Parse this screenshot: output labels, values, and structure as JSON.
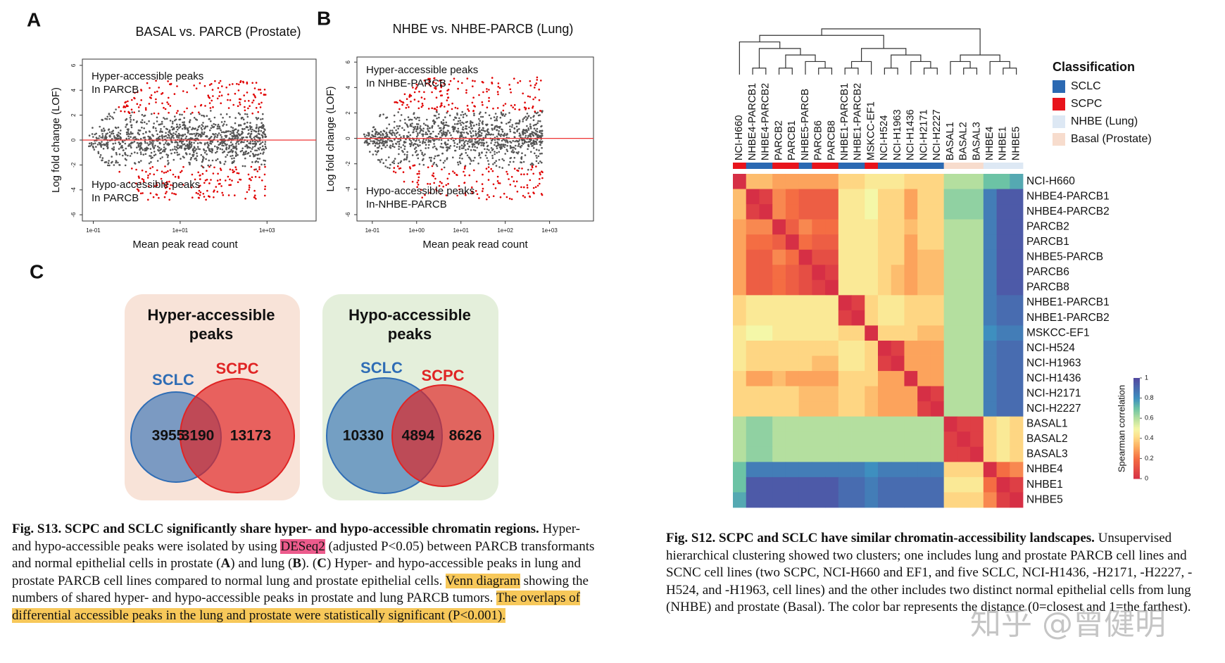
{
  "panel_a": {
    "letter": "A",
    "title": "BASAL vs. PARCB (Prostate)",
    "ylabel": "Log fold change (LOF)",
    "xlabel": "Mean peak read count",
    "annotations": [
      [
        "Hyper-accessible peaks",
        "In PARCB"
      ],
      [
        "Hypo-accessible peaks",
        "In PARCB"
      ]
    ],
    "log_x": true,
    "xlim": [
      0.056,
      13500
    ],
    "ylim": [
      -6.5,
      6.5
    ],
    "xticks": [
      {
        "value": 0.1,
        "label": "1e-01"
      },
      {
        "value": 10,
        "label": "1e+01"
      },
      {
        "value": 1000,
        "label": "1e+03"
      }
    ],
    "yticks": [
      -6,
      -4,
      -2,
      0,
      2,
      4,
      6
    ],
    "colors": {
      "significant": "#e00000",
      "other": "#555555"
    }
  },
  "panel_b": {
    "letter": "B",
    "title": "NHBE vs. NHBE-PARCB (Lung)",
    "ylabel": "Log fold change (LOF)",
    "xlabel": "Mean peak read count",
    "annotations": [
      [
        "Hyper-accessible peaks",
        "In NHBE-PARCB"
      ],
      [
        "Hypo-accessible peaks",
        "In-NHBE-PARCB"
      ]
    ],
    "log_x": true,
    "xlim": [
      0.045,
      9800
    ],
    "ylim": [
      -6.5,
      6.4
    ],
    "xticks": [
      {
        "value": 0.1,
        "label": "1e-01"
      },
      {
        "value": 1,
        "label": "1e+00"
      },
      {
        "value": 10,
        "label": "1e+01"
      },
      {
        "value": 100,
        "label": "1e+02"
      },
      {
        "value": 1000,
        "label": "1e+03"
      }
    ],
    "yticks": [
      -6,
      -4,
      -2,
      0,
      2,
      4,
      6
    ],
    "colors": {
      "significant": "#e00000",
      "other": "#555555"
    }
  },
  "panel_c": {
    "letter": "C",
    "venns": [
      {
        "title": [
          "Hyper-accessible",
          "peaks"
        ],
        "background": "#f8e3d8",
        "sets": [
          {
            "name": "SCLC",
            "color": "#2f6db5"
          },
          {
            "name": "SCPC",
            "color": "#e02424"
          }
        ],
        "values": [
          3955,
          3190,
          13173
        ]
      },
      {
        "title": [
          "Hypo-accessible",
          "peaks"
        ],
        "background": "#e4efdb",
        "sets": [
          {
            "name": "SCLC",
            "color": "#2f6db5"
          },
          {
            "name": "SCPC",
            "color": "#e02424"
          }
        ],
        "values": [
          10330,
          4894,
          8626
        ]
      }
    ]
  },
  "caption_left": [
    {
      "text": "Fig. S13. SCPC and SCLC significantly share hyper- and hypo-accessible chromatin regions.",
      "style": "bold"
    },
    {
      "text": "  Hyper- and hypo-accessible peaks were isolated by using ",
      "style": "plain"
    },
    {
      "text": "DESeq2",
      "style": "highlight-pink"
    },
    {
      "text": " (adjusted P<0.05) between PARCB transformants and normal epithelial cells in prostate (",
      "style": "plain"
    },
    {
      "text": "A",
      "style": "bold"
    },
    {
      "text": ") and lung (",
      "style": "plain"
    },
    {
      "text": "B",
      "style": "bold"
    },
    {
      "text": ").  (",
      "style": "plain"
    },
    {
      "text": "C",
      "style": "bold"
    },
    {
      "text": ") Hyper- and hypo-accessible peaks in lung and prostate PARCB cell lines compared to normal lung and prostate epithelial cells.  ",
      "style": "plain"
    },
    {
      "text": "Venn diagram",
      "style": "highlight-yellow"
    },
    {
      "text": " showing the numbers of shared hyper- and hypo-accessible peaks in prostate and lung PARCB tumors.  ",
      "style": "plain"
    },
    {
      "text": "The overlaps of differential accessible peaks in the lung and prostate were statistically significant (P<0.001).",
      "style": "highlight-yellow"
    }
  ],
  "heatmap": {
    "labels": [
      "NCI-H660",
      "NHBE4-PARCB1",
      "NHBE4-PARCB2",
      "PARCB2",
      "PARCB1",
      "NHBE5-PARCB",
      "PARCB6",
      "PARCB8",
      "NHBE1-PARCB1",
      "NHBE1-PARCB2",
      "MSKCC-EF1",
      "NCI-H524",
      "NCI-H1963",
      "NCI-H1436",
      "NCI-H2171",
      "NCI-H2227",
      "BASAL1",
      "BASAL2",
      "BASAL3",
      "NHBE4",
      "NHBE1",
      "NHBE5"
    ],
    "classification": [
      1,
      0,
      0,
      1,
      1,
      0,
      1,
      1,
      0,
      0,
      1,
      0,
      0,
      0,
      0,
      0,
      3,
      3,
      3,
      2,
      2,
      2
    ],
    "legend": {
      "title": "Classification",
      "items": [
        {
          "name": "SCLC",
          "color": "#2b69b2"
        },
        {
          "name": "SCPC",
          "color": "#e8141c"
        },
        {
          "name": "NHBE (Lung)",
          "color": "#dde8f4"
        },
        {
          "name": "Basal (Prostate)",
          "color": "#f7dccd"
        }
      ]
    },
    "colorbar": {
      "label": "Spearman correlation",
      "ticks": [
        0,
        0.2,
        0.4,
        0.6,
        0.8,
        1
      ]
    },
    "values": [
      [
        0,
        0.35,
        0.35,
        0.3,
        0.3,
        0.3,
        0.3,
        0.3,
        0.4,
        0.4,
        0.45,
        0.45,
        0.45,
        0.4,
        0.4,
        0.4,
        0.6,
        0.6,
        0.6,
        0.7,
        0.7,
        0.75
      ],
      [
        0.35,
        0,
        0.05,
        0.25,
        0.2,
        0.15,
        0.15,
        0.15,
        0.45,
        0.45,
        0.5,
        0.4,
        0.4,
        0.3,
        0.4,
        0.4,
        0.65,
        0.65,
        0.65,
        0.85,
        0.95,
        0.95
      ],
      [
        0.35,
        0.05,
        0,
        0.25,
        0.2,
        0.15,
        0.15,
        0.15,
        0.45,
        0.45,
        0.5,
        0.4,
        0.4,
        0.3,
        0.4,
        0.4,
        0.65,
        0.65,
        0.65,
        0.85,
        0.95,
        0.95
      ],
      [
        0.3,
        0.25,
        0.25,
        0,
        0.15,
        0.25,
        0.2,
        0.2,
        0.45,
        0.45,
        0.45,
        0.4,
        0.4,
        0.35,
        0.4,
        0.4,
        0.6,
        0.6,
        0.6,
        0.85,
        0.95,
        0.95
      ],
      [
        0.3,
        0.2,
        0.2,
        0.15,
        0,
        0.2,
        0.15,
        0.15,
        0.45,
        0.45,
        0.45,
        0.4,
        0.4,
        0.3,
        0.4,
        0.4,
        0.6,
        0.6,
        0.6,
        0.85,
        0.95,
        0.95
      ],
      [
        0.3,
        0.15,
        0.15,
        0.25,
        0.2,
        0,
        0.1,
        0.1,
        0.45,
        0.45,
        0.45,
        0.4,
        0.4,
        0.3,
        0.35,
        0.35,
        0.6,
        0.6,
        0.6,
        0.85,
        0.95,
        0.95
      ],
      [
        0.3,
        0.15,
        0.15,
        0.2,
        0.15,
        0.1,
        0,
        0.05,
        0.45,
        0.45,
        0.45,
        0.4,
        0.35,
        0.3,
        0.35,
        0.35,
        0.6,
        0.6,
        0.6,
        0.85,
        0.95,
        0.95
      ],
      [
        0.3,
        0.15,
        0.15,
        0.2,
        0.15,
        0.1,
        0.05,
        0,
        0.45,
        0.45,
        0.45,
        0.4,
        0.35,
        0.3,
        0.35,
        0.35,
        0.6,
        0.6,
        0.6,
        0.85,
        0.95,
        0.95
      ],
      [
        0.4,
        0.45,
        0.45,
        0.45,
        0.45,
        0.45,
        0.45,
        0.45,
        0,
        0.05,
        0.4,
        0.45,
        0.45,
        0.4,
        0.4,
        0.4,
        0.6,
        0.6,
        0.6,
        0.85,
        0.9,
        0.9
      ],
      [
        0.4,
        0.45,
        0.45,
        0.45,
        0.45,
        0.45,
        0.45,
        0.45,
        0.05,
        0,
        0.4,
        0.45,
        0.45,
        0.4,
        0.4,
        0.4,
        0.6,
        0.6,
        0.6,
        0.85,
        0.9,
        0.9
      ],
      [
        0.45,
        0.5,
        0.5,
        0.45,
        0.45,
        0.45,
        0.45,
        0.45,
        0.4,
        0.4,
        0,
        0.4,
        0.4,
        0.4,
        0.35,
        0.35,
        0.6,
        0.6,
        0.6,
        0.8,
        0.85,
        0.85
      ],
      [
        0.45,
        0.4,
        0.4,
        0.4,
        0.4,
        0.4,
        0.4,
        0.4,
        0.45,
        0.45,
        0.4,
        0,
        0.05,
        0.3,
        0.3,
        0.3,
        0.6,
        0.6,
        0.6,
        0.85,
        0.9,
        0.9
      ],
      [
        0.45,
        0.4,
        0.4,
        0.4,
        0.4,
        0.4,
        0.35,
        0.35,
        0.45,
        0.45,
        0.4,
        0.05,
        0,
        0.3,
        0.3,
        0.3,
        0.6,
        0.6,
        0.6,
        0.85,
        0.9,
        0.9
      ],
      [
        0.4,
        0.3,
        0.3,
        0.35,
        0.3,
        0.3,
        0.3,
        0.3,
        0.4,
        0.4,
        0.4,
        0.3,
        0.3,
        0,
        0.3,
        0.3,
        0.6,
        0.6,
        0.6,
        0.85,
        0.9,
        0.9
      ],
      [
        0.4,
        0.4,
        0.4,
        0.4,
        0.4,
        0.35,
        0.35,
        0.35,
        0.4,
        0.4,
        0.35,
        0.3,
        0.3,
        0.3,
        0,
        0.05,
        0.6,
        0.6,
        0.6,
        0.85,
        0.9,
        0.9
      ],
      [
        0.4,
        0.4,
        0.4,
        0.4,
        0.4,
        0.35,
        0.35,
        0.35,
        0.4,
        0.4,
        0.35,
        0.3,
        0.3,
        0.3,
        0.05,
        0,
        0.6,
        0.6,
        0.6,
        0.85,
        0.9,
        0.9
      ],
      [
        0.6,
        0.65,
        0.65,
        0.6,
        0.6,
        0.6,
        0.6,
        0.6,
        0.6,
        0.6,
        0.6,
        0.6,
        0.6,
        0.6,
        0.6,
        0.6,
        0,
        0.05,
        0.05,
        0.4,
        0.45,
        0.4
      ],
      [
        0.6,
        0.65,
        0.65,
        0.6,
        0.6,
        0.6,
        0.6,
        0.6,
        0.6,
        0.6,
        0.6,
        0.6,
        0.6,
        0.6,
        0.6,
        0.6,
        0.05,
        0,
        0.05,
        0.4,
        0.45,
        0.4
      ],
      [
        0.6,
        0.65,
        0.65,
        0.6,
        0.6,
        0.6,
        0.6,
        0.6,
        0.6,
        0.6,
        0.6,
        0.6,
        0.6,
        0.6,
        0.6,
        0.6,
        0.05,
        0.05,
        0,
        0.4,
        0.45,
        0.4
      ],
      [
        0.7,
        0.85,
        0.85,
        0.85,
        0.85,
        0.85,
        0.85,
        0.85,
        0.85,
        0.85,
        0.8,
        0.85,
        0.85,
        0.85,
        0.85,
        0.85,
        0.4,
        0.4,
        0.4,
        0,
        0.2,
        0.25
      ],
      [
        0.7,
        0.95,
        0.95,
        0.95,
        0.95,
        0.95,
        0.95,
        0.95,
        0.9,
        0.9,
        0.85,
        0.9,
        0.9,
        0.9,
        0.9,
        0.9,
        0.45,
        0.45,
        0.45,
        0.2,
        0,
        0.05
      ],
      [
        0.75,
        0.95,
        0.95,
        0.95,
        0.95,
        0.95,
        0.95,
        0.95,
        0.9,
        0.9,
        0.85,
        0.9,
        0.9,
        0.9,
        0.9,
        0.9,
        0.4,
        0.4,
        0.4,
        0.25,
        0.05,
        0
      ]
    ]
  },
  "caption_right": [
    {
      "text": "Fig. S12. SCPC and SCLC have similar chromatin-accessibility landscapes.",
      "style": "bold"
    },
    {
      "text": "  Unsupervised hierarchical clustering showed two clusters; one includes lung and prostate PARCB cell lines and SCNC cell lines (two SCPC, NCI-H660 and EF1, and five SCLC, NCI-H1436, -H2171, -H2227, -H524, and -H1963, cell lines) and the other includes two distinct normal epithelial cells from lung (NHBE) and prostate (Basal).  The color bar represents the distance (0=closest and 1=the farthest).",
      "style": "plain"
    }
  ],
  "watermark": "知乎 @曾健明"
}
